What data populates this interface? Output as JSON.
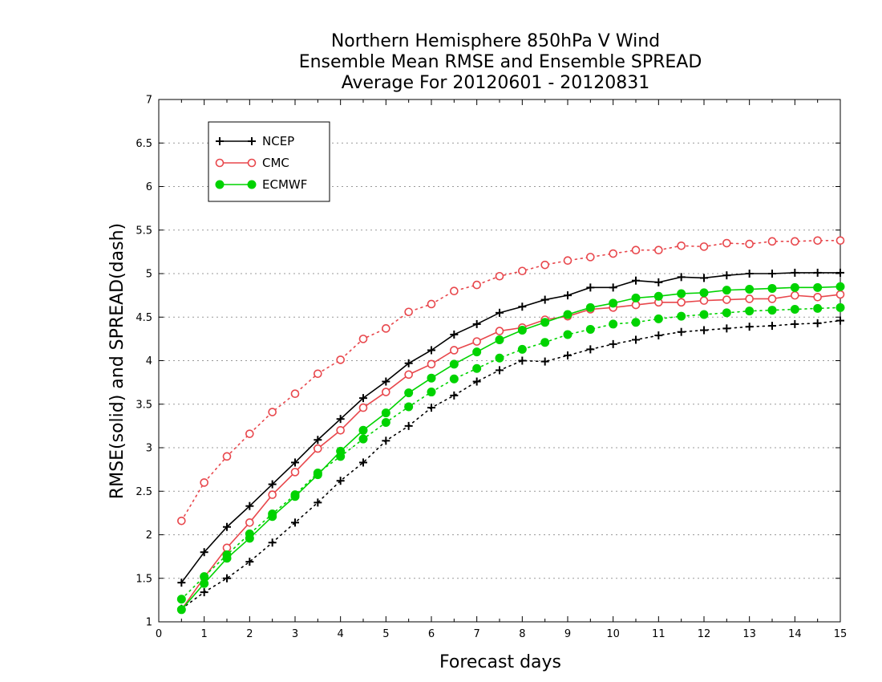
{
  "chart_data": {
    "type": "line",
    "title_lines": [
      "Northern Hemisphere 850hPa V Wind",
      "Ensemble Mean RMSE and Ensemble SPREAD",
      "Average For 20120601 - 20120831"
    ],
    "xlabel": "Forecast days",
    "ylabel": "RMSE(solid) and SPREAD(dash)",
    "xlim": [
      0,
      15
    ],
    "ylim": [
      1,
      7
    ],
    "x_ticks": [
      "0",
      "1",
      "2",
      "3",
      "4",
      "5",
      "6",
      "7",
      "8",
      "9",
      "10",
      "11",
      "12",
      "13",
      "14",
      "15"
    ],
    "y_ticks": [
      "1",
      "1.5",
      "2",
      "2.5",
      "3",
      "3.5",
      "4",
      "4.5",
      "5",
      "5.5",
      "6",
      "6.5",
      "7"
    ],
    "grid": "horizontal dotted",
    "legend_position": "top-left",
    "x": [
      0.5,
      1,
      1.5,
      2,
      2.5,
      3,
      3.5,
      4,
      4.5,
      5,
      5.5,
      6,
      6.5,
      7,
      7.5,
      8,
      8.5,
      9,
      9.5,
      10,
      10.5,
      11,
      11.5,
      12,
      12.5,
      13,
      13.5,
      14,
      14.5,
      15
    ],
    "series": [
      {
        "name": "NCEP",
        "color": "#000000",
        "marker": "plus",
        "rmse": [
          1.45,
          1.8,
          2.09,
          2.33,
          2.58,
          2.83,
          3.09,
          3.33,
          3.57,
          3.76,
          3.97,
          4.12,
          4.3,
          4.42,
          4.55,
          4.62,
          4.7,
          4.75,
          4.84,
          4.84,
          4.92,
          4.9,
          4.96,
          4.95,
          4.98,
          5.0,
          5.0,
          5.01,
          5.01,
          5.01
        ],
        "spread": [
          1.15,
          1.34,
          1.5,
          1.69,
          1.91,
          2.14,
          2.37,
          2.62,
          2.83,
          3.08,
          3.25,
          3.46,
          3.6,
          3.76,
          3.89,
          4.0,
          3.99,
          4.06,
          4.13,
          4.19,
          4.24,
          4.29,
          4.33,
          4.35,
          4.37,
          4.39,
          4.4,
          4.42,
          4.43,
          4.46
        ]
      },
      {
        "name": "CMC",
        "color": "#e8474c",
        "marker": "open-circle",
        "rmse": [
          1.14,
          1.51,
          1.85,
          2.14,
          2.46,
          2.72,
          2.99,
          3.2,
          3.46,
          3.64,
          3.84,
          3.96,
          4.12,
          4.22,
          4.34,
          4.38,
          4.47,
          4.51,
          4.59,
          4.61,
          4.64,
          4.67,
          4.67,
          4.69,
          4.7,
          4.71,
          4.71,
          4.75,
          4.73,
          4.76
        ],
        "spread": [
          2.16,
          2.6,
          2.9,
          3.16,
          3.41,
          3.62,
          3.85,
          4.01,
          4.25,
          4.37,
          4.56,
          4.65,
          4.8,
          4.87,
          4.97,
          5.03,
          5.1,
          5.15,
          5.19,
          5.23,
          5.27,
          5.27,
          5.32,
          5.31,
          5.35,
          5.34,
          5.37,
          5.37,
          5.38,
          5.38
        ]
      },
      {
        "name": "ECMWF",
        "color": "#00d300",
        "marker": "filled-circle",
        "rmse": [
          1.14,
          1.44,
          1.73,
          1.96,
          2.21,
          2.44,
          2.69,
          2.96,
          3.2,
          3.4,
          3.63,
          3.8,
          3.96,
          4.1,
          4.24,
          4.35,
          4.44,
          4.53,
          4.61,
          4.66,
          4.72,
          4.74,
          4.77,
          4.78,
          4.81,
          4.82,
          4.83,
          4.84,
          4.84,
          4.85
        ],
        "spread": [
          1.26,
          1.52,
          1.77,
          2.01,
          2.24,
          2.46,
          2.71,
          2.9,
          3.1,
          3.29,
          3.47,
          3.64,
          3.79,
          3.91,
          4.03,
          4.13,
          4.21,
          4.3,
          4.36,
          4.42,
          4.44,
          4.48,
          4.51,
          4.53,
          4.55,
          4.57,
          4.58,
          4.59,
          4.6,
          4.61
        ]
      }
    ]
  }
}
